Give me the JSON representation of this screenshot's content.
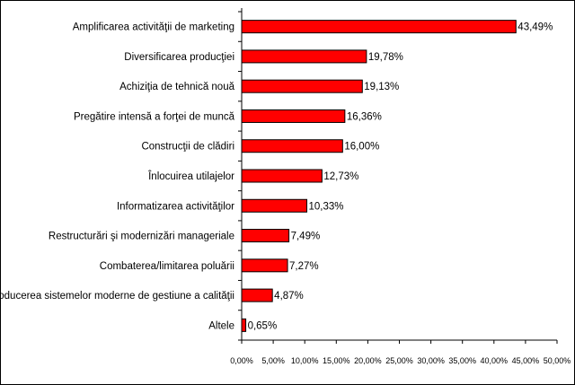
{
  "chart_data": {
    "type": "bar",
    "orientation": "horizontal",
    "categories": [
      "Amplificarea activităţii de marketing",
      "Diversificarea producţiei",
      "Achiziţia de tehnică nouă",
      "Pregătire intensă a forţei de muncă",
      "Construcţii de clădiri",
      "Înlocuirea utilajelor",
      "Informatizarea activităţilor",
      "Restructurări şi modernizări manageriale",
      "Combaterea/limitarea poluării",
      "Introducerea sistemelor moderne de gestiune a calităţii",
      "Altele"
    ],
    "values": [
      43.49,
      19.78,
      19.13,
      16.36,
      16.0,
      12.73,
      10.33,
      7.49,
      7.27,
      4.87,
      0.65
    ],
    "value_labels": [
      "43,49%",
      "19,78%",
      "19,13%",
      "16,36%",
      "16,00%",
      "12,73%",
      "10,33%",
      "7,49%",
      "7,27%",
      "4,87%",
      "0,65%"
    ],
    "xlim": [
      0,
      50
    ],
    "x_ticks": [
      "0,00%",
      "5,00%",
      "10,00%",
      "15,00%",
      "20,00%",
      "25,00%",
      "30,00%",
      "35,00%",
      "40,00%",
      "45,00%",
      "50,00%"
    ],
    "bar_color": "#ff0000",
    "bar_edge_color": "#000000",
    "grid": false,
    "legend": "none",
    "title": "",
    "xlabel": "",
    "ylabel": ""
  }
}
